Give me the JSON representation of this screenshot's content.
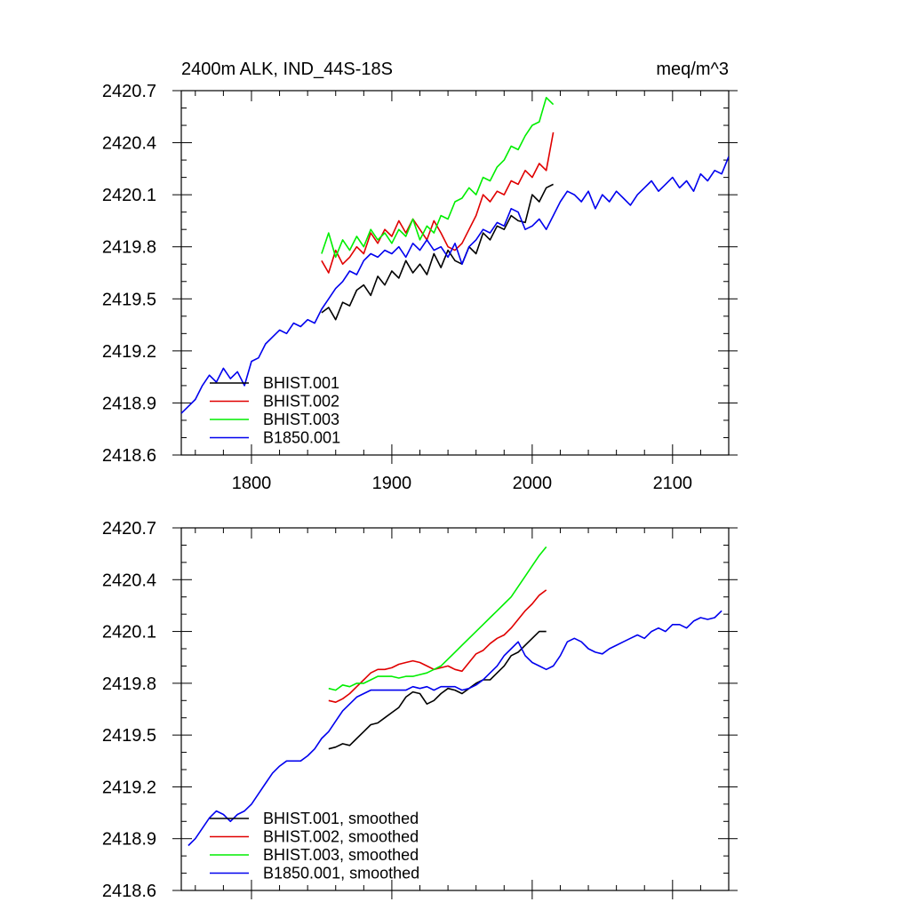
{
  "figure": {
    "title_left": "2400m ALK, IND_44S-18S",
    "title_right": "meq/m^3"
  },
  "chart_data": [
    {
      "type": "line",
      "title": "2400m ALK, IND_44S-18S",
      "units": "meq/m^3",
      "xlim": [
        1750,
        2140
      ],
      "ylim": [
        2418.6,
        2420.7
      ],
      "xticks": [
        1800,
        1900,
        2000,
        2100
      ],
      "xtick_labels": [
        "1800",
        "1900",
        "2000",
        "2100"
      ],
      "yticks": [
        2418.6,
        2418.9,
        2419.2,
        2419.5,
        2419.8,
        2420.1,
        2420.4,
        2420.7
      ],
      "ytick_labels": [
        "2418.6",
        "2418.9",
        "2419.2",
        "2419.5",
        "2419.8",
        "2420.1",
        "2420.4",
        "2420.7"
      ],
      "legend_position": "bottom-left",
      "grid": false,
      "series": [
        {
          "name": "BHIST.001",
          "color": "#000000",
          "x": [
            1850,
            1855,
            1860,
            1865,
            1870,
            1875,
            1880,
            1885,
            1890,
            1895,
            1900,
            1905,
            1910,
            1915,
            1920,
            1925,
            1930,
            1935,
            1940,
            1945,
            1950,
            1955,
            1960,
            1965,
            1970,
            1975,
            1980,
            1985,
            1990,
            1995,
            2000,
            2005,
            2010,
            2015
          ],
          "y": [
            2419.42,
            2419.45,
            2419.38,
            2419.48,
            2419.46,
            2419.55,
            2419.58,
            2419.52,
            2419.63,
            2419.58,
            2419.66,
            2419.62,
            2419.72,
            2419.65,
            2419.7,
            2419.64,
            2419.76,
            2419.68,
            2419.78,
            2419.72,
            2419.7,
            2419.8,
            2419.76,
            2419.88,
            2419.84,
            2419.92,
            2419.9,
            2419.98,
            2419.95,
            2419.94,
            2420.1,
            2420.06,
            2420.14,
            2420.16
          ]
        },
        {
          "name": "BHIST.002",
          "color": "#e00000",
          "x": [
            1850,
            1855,
            1860,
            1865,
            1870,
            1875,
            1880,
            1885,
            1890,
            1895,
            1900,
            1905,
            1910,
            1915,
            1920,
            1925,
            1930,
            1935,
            1940,
            1945,
            1950,
            1955,
            1960,
            1965,
            1970,
            1975,
            1980,
            1985,
            1990,
            1995,
            2000,
            2005,
            2010,
            2015
          ],
          "y": [
            2419.72,
            2419.65,
            2419.78,
            2419.7,
            2419.74,
            2419.8,
            2419.76,
            2419.88,
            2419.82,
            2419.9,
            2419.86,
            2419.95,
            2419.88,
            2419.96,
            2419.9,
            2419.84,
            2419.95,
            2419.88,
            2419.8,
            2419.78,
            2419.82,
            2419.9,
            2419.98,
            2420.1,
            2420.06,
            2420.12,
            2420.1,
            2420.18,
            2420.16,
            2420.24,
            2420.2,
            2420.28,
            2420.24,
            2420.46
          ]
        },
        {
          "name": "BHIST.003",
          "color": "#00ee00",
          "x": [
            1850,
            1855,
            1860,
            1865,
            1870,
            1875,
            1880,
            1885,
            1890,
            1895,
            1900,
            1905,
            1910,
            1915,
            1920,
            1925,
            1930,
            1935,
            1940,
            1945,
            1950,
            1955,
            1960,
            1965,
            1970,
            1975,
            1980,
            1985,
            1990,
            1995,
            2000,
            2005,
            2010,
            2015
          ],
          "y": [
            2419.76,
            2419.88,
            2419.74,
            2419.84,
            2419.78,
            2419.86,
            2419.8,
            2419.9,
            2419.84,
            2419.88,
            2419.82,
            2419.9,
            2419.86,
            2419.96,
            2419.84,
            2419.92,
            2419.88,
            2419.98,
            2419.96,
            2420.06,
            2420.08,
            2420.14,
            2420.1,
            2420.2,
            2420.18,
            2420.26,
            2420.3,
            2420.38,
            2420.36,
            2420.44,
            2420.5,
            2420.52,
            2420.66,
            2420.62
          ]
        },
        {
          "name": "B1850.001",
          "color": "#0000ee",
          "x": [
            1750,
            1755,
            1760,
            1765,
            1770,
            1775,
            1780,
            1785,
            1790,
            1795,
            1800,
            1805,
            1810,
            1815,
            1820,
            1825,
            1830,
            1835,
            1840,
            1845,
            1850,
            1855,
            1860,
            1865,
            1870,
            1875,
            1880,
            1885,
            1890,
            1895,
            1900,
            1905,
            1910,
            1915,
            1920,
            1925,
            1930,
            1935,
            1940,
            1945,
            1950,
            1955,
            1960,
            1965,
            1970,
            1975,
            1980,
            1985,
            1990,
            1995,
            2000,
            2005,
            2010,
            2015,
            2020,
            2025,
            2030,
            2035,
            2040,
            2045,
            2050,
            2055,
            2060,
            2065,
            2070,
            2075,
            2080,
            2085,
            2090,
            2095,
            2100,
            2105,
            2110,
            2115,
            2120,
            2125,
            2130,
            2135,
            2140
          ],
          "y": [
            2418.84,
            2418.88,
            2418.92,
            2419.0,
            2419.06,
            2419.02,
            2419.1,
            2419.04,
            2419.08,
            2419.0,
            2419.14,
            2419.16,
            2419.24,
            2419.28,
            2419.32,
            2419.3,
            2419.36,
            2419.34,
            2419.38,
            2419.36,
            2419.44,
            2419.5,
            2419.56,
            2419.6,
            2419.66,
            2419.64,
            2419.72,
            2419.76,
            2419.74,
            2419.78,
            2419.76,
            2419.8,
            2419.74,
            2419.82,
            2419.78,
            2419.84,
            2419.78,
            2419.8,
            2419.74,
            2419.82,
            2419.7,
            2419.8,
            2419.84,
            2419.9,
            2419.88,
            2419.94,
            2419.92,
            2420.02,
            2420.0,
            2419.9,
            2419.92,
            2419.96,
            2419.9,
            2419.98,
            2420.06,
            2420.12,
            2420.1,
            2420.06,
            2420.12,
            2420.02,
            2420.1,
            2420.06,
            2420.12,
            2420.08,
            2420.04,
            2420.1,
            2420.14,
            2420.18,
            2420.12,
            2420.16,
            2420.2,
            2420.14,
            2420.18,
            2420.12,
            2420.22,
            2420.18,
            2420.24,
            2420.22,
            2420.32
          ]
        }
      ]
    },
    {
      "type": "line",
      "xlim": [
        1750,
        2140
      ],
      "ylim": [
        2418.6,
        2420.7
      ],
      "xticks": [
        1800,
        1900,
        2000,
        2100
      ],
      "xtick_labels": [],
      "yticks": [
        2418.6,
        2418.9,
        2419.2,
        2419.5,
        2419.8,
        2420.1,
        2420.4,
        2420.7
      ],
      "ytick_labels": [
        "2418.6",
        "2418.9",
        "2419.2",
        "2419.5",
        "2419.8",
        "2420.1",
        "2420.4",
        "2420.7"
      ],
      "legend_position": "bottom-left",
      "grid": false,
      "series": [
        {
          "name": "BHIST.001, smoothed",
          "color": "#000000",
          "x": [
            1855,
            1860,
            1865,
            1870,
            1875,
            1880,
            1885,
            1890,
            1895,
            1900,
            1905,
            1910,
            1915,
            1920,
            1925,
            1930,
            1935,
            1940,
            1945,
            1950,
            1955,
            1960,
            1965,
            1970,
            1975,
            1980,
            1985,
            1990,
            1995,
            2000,
            2005,
            2010
          ],
          "y": [
            2419.42,
            2419.43,
            2419.45,
            2419.44,
            2419.48,
            2419.52,
            2419.56,
            2419.57,
            2419.6,
            2419.63,
            2419.66,
            2419.72,
            2419.75,
            2419.74,
            2419.68,
            2419.7,
            2419.74,
            2419.77,
            2419.76,
            2419.74,
            2419.77,
            2419.8,
            2419.82,
            2419.82,
            2419.86,
            2419.9,
            2419.96,
            2419.98,
            2420.02,
            2420.06,
            2420.1,
            2420.1
          ]
        },
        {
          "name": "BHIST.002, smoothed",
          "color": "#e00000",
          "x": [
            1855,
            1860,
            1865,
            1870,
            1875,
            1880,
            1885,
            1890,
            1895,
            1900,
            1905,
            1910,
            1915,
            1920,
            1925,
            1930,
            1935,
            1940,
            1945,
            1950,
            1955,
            1960,
            1965,
            1970,
            1975,
            1980,
            1985,
            1990,
            1995,
            2000,
            2005,
            2010
          ],
          "y": [
            2419.7,
            2419.69,
            2419.71,
            2419.74,
            2419.78,
            2419.82,
            2419.86,
            2419.88,
            2419.88,
            2419.89,
            2419.91,
            2419.92,
            2419.93,
            2419.92,
            2419.9,
            2419.88,
            2419.89,
            2419.9,
            2419.88,
            2419.87,
            2419.92,
            2419.97,
            2419.99,
            2420.03,
            2420.06,
            2420.08,
            2420.12,
            2420.17,
            2420.22,
            2420.26,
            2420.31,
            2420.34
          ]
        },
        {
          "name": "BHIST.003, smoothed",
          "color": "#00ee00",
          "x": [
            1855,
            1860,
            1865,
            1870,
            1875,
            1880,
            1885,
            1890,
            1895,
            1900,
            1905,
            1910,
            1915,
            1920,
            1925,
            1930,
            1935,
            1940,
            1945,
            1950,
            1955,
            1960,
            1965,
            1970,
            1975,
            1980,
            1985,
            1990,
            1995,
            2000,
            2005,
            2010
          ],
          "y": [
            2419.77,
            2419.76,
            2419.79,
            2419.78,
            2419.8,
            2419.8,
            2419.82,
            2419.84,
            2419.84,
            2419.84,
            2419.83,
            2419.84,
            2419.84,
            2419.85,
            2419.86,
            2419.88,
            2419.9,
            2419.94,
            2419.98,
            2420.02,
            2420.06,
            2420.1,
            2420.14,
            2420.18,
            2420.22,
            2420.26,
            2420.3,
            2420.36,
            2420.42,
            2420.48,
            2420.54,
            2420.59
          ]
        },
        {
          "name": "B1850.001, smoothed",
          "color": "#0000ee",
          "x": [
            1755,
            1760,
            1765,
            1770,
            1775,
            1780,
            1785,
            1790,
            1795,
            1800,
            1805,
            1810,
            1815,
            1820,
            1825,
            1830,
            1835,
            1840,
            1845,
            1850,
            1855,
            1860,
            1865,
            1870,
            1875,
            1880,
            1885,
            1890,
            1895,
            1900,
            1905,
            1910,
            1915,
            1920,
            1925,
            1930,
            1935,
            1940,
            1945,
            1950,
            1955,
            1960,
            1965,
            1970,
            1975,
            1980,
            1985,
            1990,
            1995,
            2000,
            2005,
            2010,
            2015,
            2020,
            2025,
            2030,
            2035,
            2040,
            2045,
            2050,
            2055,
            2060,
            2065,
            2070,
            2075,
            2080,
            2085,
            2090,
            2095,
            2100,
            2105,
            2110,
            2115,
            2120,
            2125,
            2130,
            2135
          ],
          "y": [
            2418.86,
            2418.9,
            2418.96,
            2419.02,
            2419.06,
            2419.04,
            2419.0,
            2419.04,
            2419.06,
            2419.1,
            2419.16,
            2419.22,
            2419.28,
            2419.32,
            2419.35,
            2419.35,
            2419.35,
            2419.38,
            2419.42,
            2419.48,
            2419.52,
            2419.58,
            2419.64,
            2419.68,
            2419.72,
            2419.74,
            2419.76,
            2419.76,
            2419.76,
            2419.76,
            2419.76,
            2419.76,
            2419.78,
            2419.77,
            2419.78,
            2419.76,
            2419.78,
            2419.78,
            2419.78,
            2419.76,
            2419.77,
            2419.79,
            2419.82,
            2419.86,
            2419.9,
            2419.96,
            2420.0,
            2420.04,
            2419.96,
            2419.92,
            2419.9,
            2419.88,
            2419.9,
            2419.96,
            2420.04,
            2420.06,
            2420.04,
            2420.0,
            2419.98,
            2419.97,
            2420.0,
            2420.02,
            2420.04,
            2420.06,
            2420.08,
            2420.06,
            2420.1,
            2420.12,
            2420.1,
            2420.14,
            2420.14,
            2420.12,
            2420.16,
            2420.18,
            2420.17,
            2420.18,
            2420.22
          ]
        }
      ]
    }
  ]
}
